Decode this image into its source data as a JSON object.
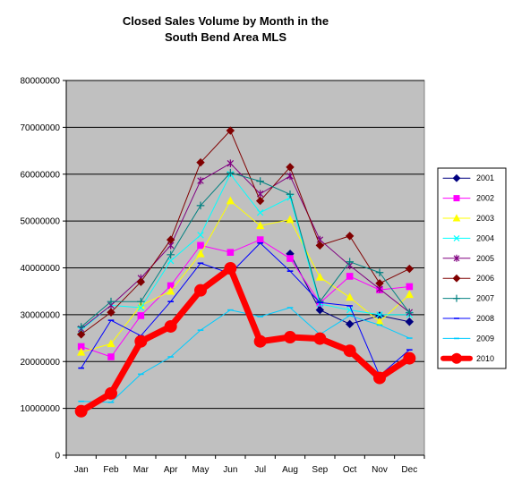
{
  "chart_data": {
    "type": "line",
    "title_line1": "Closed Sales Volume by Month in the",
    "title_line2": "South Bend Area MLS",
    "categories": [
      "Jan",
      "Feb",
      "Mar",
      "Apr",
      "May",
      "Jun",
      "Jul",
      "Aug",
      "Sep",
      "Oct",
      "Nov",
      "Dec"
    ],
    "ylim": [
      0,
      80000000
    ],
    "yticks": [
      "0",
      "10000000",
      "20000000",
      "30000000",
      "40000000",
      "50000000",
      "60000000",
      "70000000",
      "80000000"
    ],
    "grid": true,
    "plot_background": "#c0c0c0",
    "legend_position": "right",
    "series": [
      {
        "name": "2001",
        "color": "#000080",
        "marker": "diamond",
        "values": [
          null,
          null,
          null,
          null,
          null,
          null,
          null,
          43000000,
          31000000,
          28000000,
          29800000,
          28500000
        ]
      },
      {
        "name": "2002",
        "color": "#ff00ff",
        "marker": "square",
        "values": [
          23200000,
          21000000,
          29800000,
          36200000,
          44800000,
          43300000,
          46000000,
          42000000,
          32500000,
          38200000,
          35300000,
          36000000
        ]
      },
      {
        "name": "2003",
        "color": "#ffff00",
        "marker": "triangle",
        "values": [
          22000000,
          23800000,
          32000000,
          35000000,
          43000000,
          54300000,
          49000000,
          50300000,
          38000000,
          33700000,
          28500000,
          34300000
        ]
      },
      {
        "name": "2004",
        "color": "#00ffff",
        "marker": "x",
        "values": [
          26700000,
          32000000,
          31500000,
          41500000,
          47000000,
          60000000,
          51800000,
          55000000,
          32300000,
          31000000,
          30000000,
          30000000
        ]
      },
      {
        "name": "2005",
        "color": "#800080",
        "marker": "star",
        "values": [
          27000000,
          32000000,
          37800000,
          44800000,
          58600000,
          62300000,
          55800000,
          59600000,
          46000000,
          40500000,
          35500000,
          30500000
        ]
      },
      {
        "name": "2006",
        "color": "#800000",
        "marker": "diamond",
        "values": [
          25800000,
          30500000,
          37000000,
          46000000,
          62500000,
          69300000,
          54300000,
          61500000,
          44800000,
          46800000,
          36700000,
          39800000
        ]
      },
      {
        "name": "2007",
        "color": "#008080",
        "marker": "plus",
        "values": [
          27400000,
          32800000,
          32800000,
          42800000,
          53300000,
          60300000,
          58500000,
          55700000,
          32800000,
          41300000,
          39000000,
          30400000
        ]
      },
      {
        "name": "2008",
        "color": "#0000ff",
        "marker": "dash",
        "values": [
          18600000,
          28800000,
          25500000,
          32800000,
          41000000,
          38800000,
          45300000,
          39300000,
          32600000,
          31900000,
          17000000,
          22500000
        ]
      },
      {
        "name": "2009",
        "color": "#00ccff",
        "marker": "dash",
        "values": [
          11500000,
          11300000,
          17300000,
          21000000,
          26700000,
          31000000,
          29600000,
          31500000,
          25800000,
          29800000,
          27800000,
          25000000
        ]
      },
      {
        "name": "2010",
        "color": "#ff0000",
        "marker": "circle",
        "thick": true,
        "values": [
          9400000,
          13200000,
          24300000,
          27500000,
          35200000,
          39900000,
          24300000,
          25200000,
          24900000,
          22300000,
          16500000,
          20700000
        ]
      }
    ]
  }
}
